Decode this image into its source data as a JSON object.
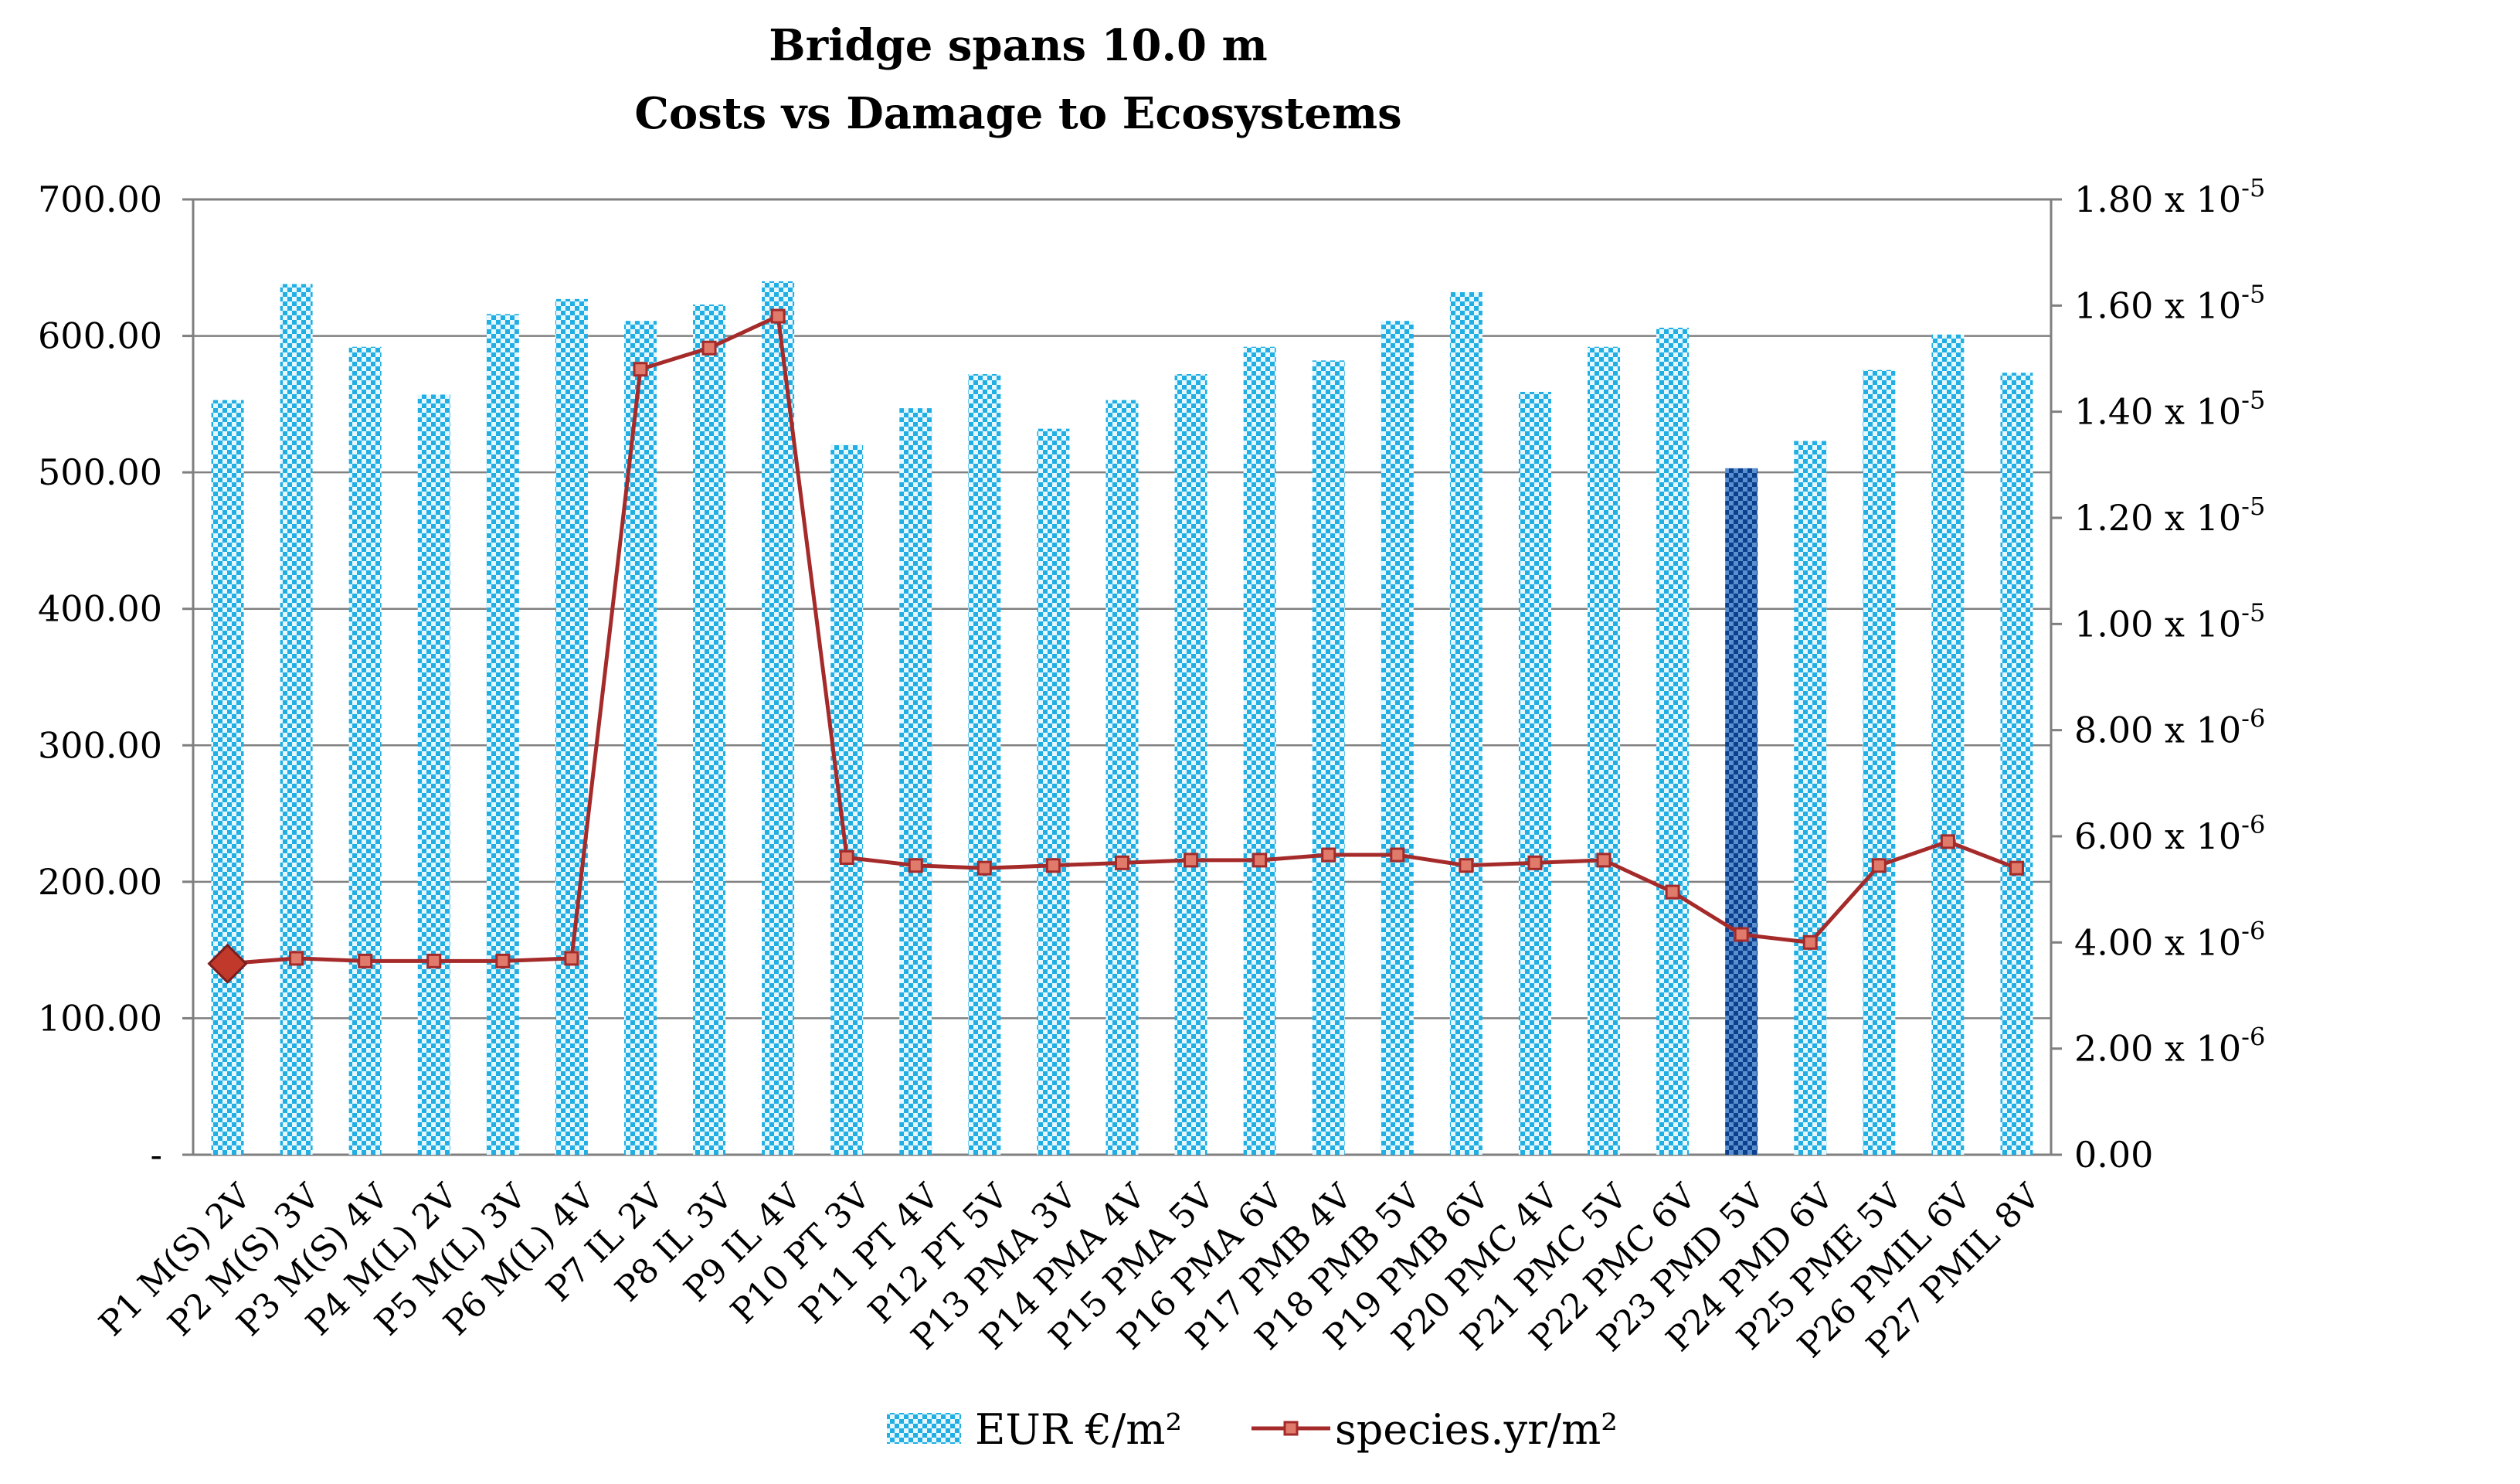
{
  "chart_data": {
    "type": "bar",
    "title": "Bridge spans 10.0 m",
    "subtitle": "Costs vs Damage to Ecosystems",
    "categories": [
      "P1 M(S) 2V",
      "P2 M(S) 3V",
      "P3 M(S) 4V",
      "P4 M(L) 2V",
      "P5 M(L) 3V",
      "P6 M(L) 4V",
      "P7 IL 2V",
      "P8 IL 3V",
      "P9 IL 4V",
      "P10 PT 3V",
      "P11 PT 4V",
      "P12 PT 5V",
      "P13 PMA 3V",
      "P14 PMA 4V",
      "P15 PMA 5V",
      "P16 PMA 6V",
      "P17 PMB 4V",
      "P18 PMB 5V",
      "P19 PMB 6V",
      "P20 PMC 4V",
      "P21 PMC 5V",
      "P22 PMC 6V",
      "P23 PMD 5V",
      "P24 PMD 6V",
      "P25 PME 5V",
      "P26 PMIL 6V",
      "P27 PMIL 8V"
    ],
    "series": [
      {
        "name": "EUR €/m²",
        "kind": "bar",
        "axis": "left",
        "color": "#29b6e6",
        "highlight_color": "#1f5fa8",
        "highlight_index": 22,
        "values": [
          553,
          638,
          592,
          557,
          616,
          627,
          611,
          623,
          640,
          520,
          547,
          572,
          532,
          553,
          572,
          592,
          582,
          611,
          632,
          559,
          592,
          606,
          503,
          523,
          575,
          601,
          573
        ]
      },
      {
        "name": "species.yr/m²",
        "kind": "line",
        "axis": "right",
        "color": "#a52a2a",
        "highlight_index": 0,
        "values": [
          3.6e-06,
          3.7e-06,
          3.65e-06,
          3.65e-06,
          3.65e-06,
          3.7e-06,
          1.48e-05,
          1.52e-05,
          1.58e-05,
          5.6e-06,
          5.45e-06,
          5.4e-06,
          5.45e-06,
          5.5e-06,
          5.55e-06,
          5.55e-06,
          5.65e-06,
          5.65e-06,
          5.45e-06,
          5.5e-06,
          5.55e-06,
          4.95e-06,
          4.15e-06,
          4e-06,
          5.45e-06,
          5.9e-06,
          5.4e-06
        ]
      }
    ],
    "y_left": {
      "ylim": [
        0,
        700
      ],
      "ticks": [
        0,
        100,
        200,
        300,
        400,
        500,
        600,
        700
      ],
      "tick_labels": [
        "-",
        "100.00",
        "200.00",
        "300.00",
        "400.00",
        "500.00",
        "600.00",
        "700.00"
      ]
    },
    "y_right": {
      "ylim": [
        0,
        1.8e-05
      ],
      "ticks": [
        0,
        2e-06,
        4e-06,
        6e-06,
        8e-06,
        1e-05,
        1.2e-05,
        1.4e-05,
        1.6e-05,
        1.8e-05
      ],
      "tick_labels": [
        "0.00",
        "2.00 x 10",
        "4.00 x 10",
        "6.00 x 10",
        "8.00 x 10",
        "1.00 x 10",
        "1.20 x 10",
        "1.40 x 10",
        "1.60 x 10",
        "1.80 x 10"
      ],
      "tick_exponents": [
        "",
        "-6",
        "-6",
        "-6",
        "-6",
        "-5",
        "-5",
        "-5",
        "-5",
        "-5"
      ]
    },
    "grid": true,
    "legend": "bottom-center"
  }
}
